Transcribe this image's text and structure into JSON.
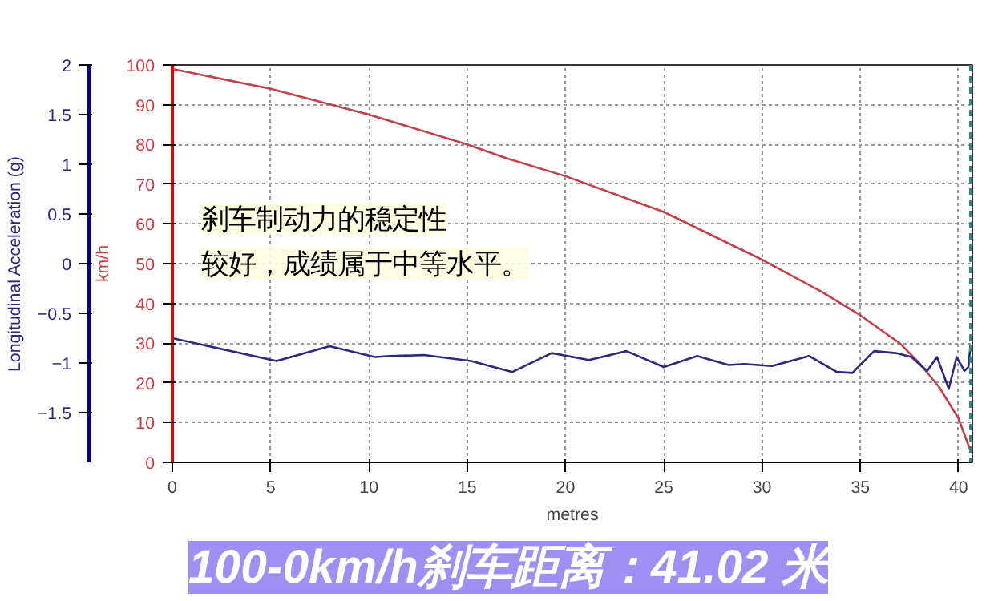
{
  "chart_data": {
    "type": "line",
    "title": "100-0km/h刹车距离：41.02 米",
    "xlabel": "metres",
    "ylabel": "km/h",
    "y2label": "Longitudinal Acceleration (g)",
    "annotations": [
      "刹车制动力的稳定性",
      "较好，成绩属于中等水平。"
    ],
    "xlim": [
      0,
      40.7
    ],
    "xticks": [
      0,
      5,
      10,
      15,
      20,
      25,
      30,
      35,
      40
    ],
    "ylim": [
      0,
      100
    ],
    "yticks": [
      0,
      10,
      20,
      30,
      40,
      50,
      60,
      70,
      80,
      90,
      100
    ],
    "y2lim": [
      -2,
      2
    ],
    "y2ticks": [
      -1.5,
      -1,
      -0.5,
      0,
      0.5,
      1,
      1.5,
      2
    ],
    "grid": true,
    "ref_lines": [
      {
        "axis": "x",
        "value": 40.6,
        "color": "#2a8a8a",
        "line_style": "dashed"
      }
    ],
    "series": [
      {
        "color": "#c0404a",
        "x": [
          0,
          5,
          10,
          15,
          17,
          20,
          25,
          30,
          33,
          35,
          37,
          38,
          39,
          40,
          40.6
        ],
        "values": [
          99,
          94,
          87.5,
          80,
          76.5,
          72,
          63,
          51,
          43,
          37,
          30,
          25,
          19,
          11,
          3
        ]
      },
      {
        "color": "#2a2a7a",
        "axis": "y2",
        "x": [
          0,
          5.3,
          8,
          10.3,
          11.1,
          12.8,
          15.2,
          17.3,
          19.3,
          21.2,
          23.1,
          25,
          26.7,
          28.3,
          29.1,
          30.5,
          32.4,
          33.8,
          34.6,
          35.7,
          36.8,
          37.6,
          38.4,
          38.9,
          39.5,
          39.9,
          40.3,
          40.5,
          40.6
        ],
        "values": [
          -0.75,
          -0.98,
          -0.83,
          -0.94,
          -0.93,
          -0.92,
          -0.98,
          -1.09,
          -0.9,
          -0.97,
          -0.88,
          -1.04,
          -0.93,
          -1.02,
          -1.01,
          -1.03,
          -0.93,
          -1.09,
          -1.1,
          -0.88,
          -0.9,
          -0.94,
          -1.08,
          -0.94,
          -1.26,
          -0.94,
          -1.08,
          -1.04,
          -0.83
        ]
      }
    ]
  }
}
